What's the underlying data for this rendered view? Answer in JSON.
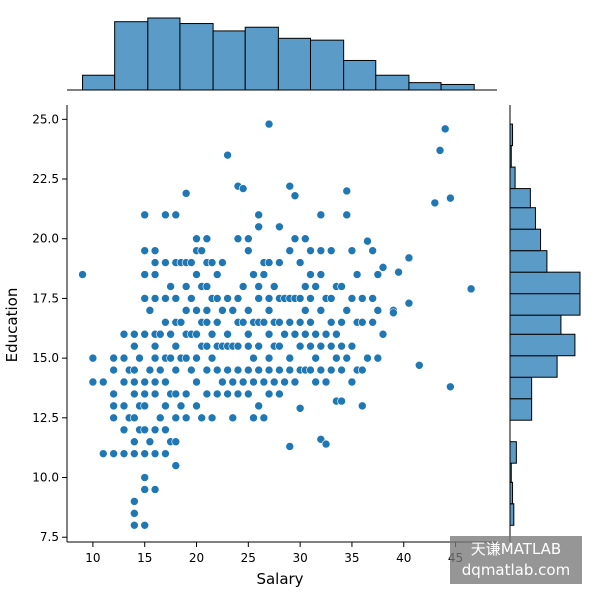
{
  "chart_data": {
    "type": "scatter",
    "title": "",
    "xlabel": "Salary",
    "ylabel": "Education",
    "xlim": [
      7.5,
      49
    ],
    "ylim": [
      7.3,
      25.6
    ],
    "xticks": [
      10,
      15,
      20,
      25,
      30,
      35,
      40,
      45
    ],
    "xtick_labels": [
      "10",
      "15",
      "20",
      "25",
      "30",
      "35",
      "40",
      "45"
    ],
    "yticks": [
      7.5,
      10.0,
      12.5,
      15.0,
      17.5,
      20.0,
      22.5,
      25.0
    ],
    "ytick_labels": [
      "7.5",
      "10.0",
      "12.5",
      "15.0",
      "17.5",
      "20.0",
      "22.5",
      "25.0"
    ],
    "grid": false,
    "point_color": "#1f77b4",
    "bar_color": "#5a9bc8",
    "marginal_x_hist": {
      "bin_edges": [
        9.0,
        12.1,
        15.3,
        18.4,
        21.6,
        24.7,
        27.9,
        31.0,
        34.2,
        37.3,
        40.5,
        43.6,
        46.8
      ],
      "counts": [
        8,
        37,
        39,
        36,
        32,
        34,
        28,
        27,
        16,
        8,
        4,
        3
      ]
    },
    "marginal_y_hist": {
      "bin_edges": [
        8.0,
        8.9,
        9.8,
        10.6,
        11.5,
        12.4,
        13.3,
        14.2,
        15.1,
        16.0,
        16.8,
        17.7,
        18.6,
        19.5,
        20.4,
        21.3,
        22.1,
        23.0,
        23.9,
        24.8
      ],
      "counts": [
        3,
        2,
        1,
        5,
        0,
        17,
        17,
        37,
        51,
        40,
        55,
        55,
        29,
        24,
        20,
        16,
        4,
        1,
        2
      ]
    },
    "points": [
      [
        9,
        18.5
      ],
      [
        10,
        15
      ],
      [
        10,
        14
      ],
      [
        11,
        14
      ],
      [
        11,
        11
      ],
      [
        12,
        11
      ],
      [
        12,
        12.5
      ],
      [
        12,
        13
      ],
      [
        12,
        13.5
      ],
      [
        12,
        14.5
      ],
      [
        12,
        15
      ],
      [
        13,
        11
      ],
      [
        13,
        12
      ],
      [
        13,
        13
      ],
      [
        13,
        14
      ],
      [
        13,
        15
      ],
      [
        13,
        16
      ],
      [
        13.5,
        12.5
      ],
      [
        13.5,
        14.5
      ],
      [
        14,
        8
      ],
      [
        14,
        8.5
      ],
      [
        14,
        9
      ],
      [
        14,
        11
      ],
      [
        14,
        11.5
      ],
      [
        14,
        12.5
      ],
      [
        14,
        13.5
      ],
      [
        14,
        14
      ],
      [
        14,
        14.5
      ],
      [
        14,
        15.5
      ],
      [
        14,
        16
      ],
      [
        14.5,
        12
      ],
      [
        14.5,
        13
      ],
      [
        14.5,
        15
      ],
      [
        15,
        8
      ],
      [
        15,
        9.5
      ],
      [
        15,
        10
      ],
      [
        15,
        11
      ],
      [
        15,
        12
      ],
      [
        15,
        13
      ],
      [
        15,
        13.5
      ],
      [
        15,
        14
      ],
      [
        15,
        16
      ],
      [
        15,
        17.5
      ],
      [
        15,
        18.5
      ],
      [
        15,
        19.5
      ],
      [
        15,
        21
      ],
      [
        15.5,
        11.5
      ],
      [
        15.5,
        14.5
      ],
      [
        15.5,
        17
      ],
      [
        16,
        9.5
      ],
      [
        16,
        11
      ],
      [
        16,
        12
      ],
      [
        16,
        13.5
      ],
      [
        16,
        14
      ],
      [
        16,
        15
      ],
      [
        16,
        15.5
      ],
      [
        16,
        16
      ],
      [
        16,
        17.5
      ],
      [
        16,
        18.5
      ],
      [
        16,
        19
      ],
      [
        16,
        19.5
      ],
      [
        16.5,
        12.5
      ],
      [
        16.5,
        14.5
      ],
      [
        16.5,
        16
      ],
      [
        17,
        11
      ],
      [
        17,
        12
      ],
      [
        17,
        13
      ],
      [
        17,
        14
      ],
      [
        17,
        15
      ],
      [
        17,
        16.5
      ],
      [
        17,
        17.5
      ],
      [
        17,
        19
      ],
      [
        17,
        21
      ],
      [
        17.5,
        11.5
      ],
      [
        17.5,
        13.5
      ],
      [
        17.5,
        15
      ],
      [
        17.5,
        16
      ],
      [
        17.5,
        18
      ],
      [
        18,
        10.5
      ],
      [
        18,
        11.5
      ],
      [
        18,
        12.5
      ],
      [
        18,
        13.5
      ],
      [
        18,
        14.5
      ],
      [
        18,
        15.5
      ],
      [
        18,
        16.5
      ],
      [
        18,
        17.5
      ],
      [
        18,
        19
      ],
      [
        18,
        21
      ],
      [
        18.5,
        13
      ],
      [
        18.5,
        15
      ],
      [
        18.5,
        16.5
      ],
      [
        18.5,
        19
      ],
      [
        19,
        12.5
      ],
      [
        19,
        13.5
      ],
      [
        19,
        15
      ],
      [
        19,
        16
      ],
      [
        19,
        17
      ],
      [
        19,
        18
      ],
      [
        19,
        19
      ],
      [
        19,
        21.9
      ],
      [
        19.5,
        14.5
      ],
      [
        19.5,
        16
      ],
      [
        19.5,
        17.5
      ],
      [
        19.5,
        19
      ],
      [
        20,
        13
      ],
      [
        20,
        14
      ],
      [
        20,
        15
      ],
      [
        20,
        16
      ],
      [
        20,
        17
      ],
      [
        20,
        18.5
      ],
      [
        20,
        19.5
      ],
      [
        20,
        20
      ],
      [
        20.5,
        12.5
      ],
      [
        20.5,
        15.5
      ],
      [
        20.5,
        16.5
      ],
      [
        20.5,
        18
      ],
      [
        20.5,
        19.5
      ],
      [
        21,
        13.5
      ],
      [
        21,
        14.5
      ],
      [
        21,
        15.5
      ],
      [
        21,
        16.5
      ],
      [
        21,
        17
      ],
      [
        21,
        18
      ],
      [
        21,
        19
      ],
      [
        21,
        20
      ],
      [
        21.5,
        12.5
      ],
      [
        21.5,
        15
      ],
      [
        21.5,
        16
      ],
      [
        21.5,
        17.5
      ],
      [
        21.5,
        19
      ],
      [
        22,
        13.5
      ],
      [
        22,
        14.5
      ],
      [
        22,
        15.5
      ],
      [
        22,
        16.5
      ],
      [
        22,
        17.5
      ],
      [
        22,
        18.5
      ],
      [
        22.5,
        14
      ],
      [
        22.5,
        15.5
      ],
      [
        22.5,
        17
      ],
      [
        22.5,
        19
      ],
      [
        23,
        13.5
      ],
      [
        23,
        14.5
      ],
      [
        23,
        15.5
      ],
      [
        23,
        16
      ],
      [
        23,
        17.5
      ],
      [
        23,
        23.5
      ],
      [
        23.5,
        12.5
      ],
      [
        23.5,
        14
      ],
      [
        23.5,
        15.5
      ],
      [
        23.5,
        17
      ],
      [
        24,
        13.5
      ],
      [
        24,
        14.5
      ],
      [
        24,
        15.5
      ],
      [
        24,
        16.5
      ],
      [
        24,
        17.5
      ],
      [
        24,
        20
      ],
      [
        24,
        22.2
      ],
      [
        24.5,
        14
      ],
      [
        24.5,
        16.5
      ],
      [
        24.5,
        18
      ],
      [
        24.5,
        22.1
      ],
      [
        25,
        13.5
      ],
      [
        25,
        14.5
      ],
      [
        25,
        15.5
      ],
      [
        25,
        16
      ],
      [
        25,
        17
      ],
      [
        25,
        19.5
      ],
      [
        25,
        20
      ],
      [
        25.5,
        12.5
      ],
      [
        25.5,
        14
      ],
      [
        25.5,
        15
      ],
      [
        25.5,
        16.5
      ],
      [
        25.5,
        18.5
      ],
      [
        26,
        13
      ],
      [
        26,
        14.5
      ],
      [
        26,
        15.5
      ],
      [
        26,
        16.5
      ],
      [
        26,
        17.5
      ],
      [
        26,
        18
      ],
      [
        26,
        20.5
      ],
      [
        26,
        21
      ],
      [
        26.5,
        12.5
      ],
      [
        26.5,
        14
      ],
      [
        26.5,
        16.5
      ],
      [
        26.5,
        18.5
      ],
      [
        26.5,
        19
      ],
      [
        27,
        13.5
      ],
      [
        27,
        14.5
      ],
      [
        27,
        15
      ],
      [
        27,
        16
      ],
      [
        27,
        17
      ],
      [
        27,
        17.5
      ],
      [
        27,
        19
      ],
      [
        27,
        24.8
      ],
      [
        27.5,
        14
      ],
      [
        27.5,
        15.5
      ],
      [
        27.5,
        16.5
      ],
      [
        27.5,
        18
      ],
      [
        28,
        13.5
      ],
      [
        28,
        14.5
      ],
      [
        28,
        15.5
      ],
      [
        28,
        16.5
      ],
      [
        28,
        17.5
      ],
      [
        28,
        19
      ],
      [
        28,
        20.5
      ],
      [
        28.5,
        14
      ],
      [
        28.5,
        16
      ],
      [
        28.5,
        17.5
      ],
      [
        29,
        11.3
      ],
      [
        29,
        14.5
      ],
      [
        29,
        15
      ],
      [
        29,
        16.5
      ],
      [
        29,
        17.5
      ],
      [
        29,
        19.5
      ],
      [
        29,
        22.2
      ],
      [
        29.5,
        14
      ],
      [
        29.5,
        16
      ],
      [
        29.5,
        17.5
      ],
      [
        29.5,
        20
      ],
      [
        29.5,
        21.8
      ],
      [
        30,
        12.9
      ],
      [
        30,
        14.5
      ],
      [
        30,
        15.5
      ],
      [
        30,
        16.5
      ],
      [
        30,
        17.5
      ],
      [
        30,
        19
      ],
      [
        30.5,
        14.5
      ],
      [
        30.5,
        16
      ],
      [
        30.5,
        17
      ],
      [
        30.5,
        18
      ],
      [
        30.5,
        20
      ],
      [
        31,
        14.5
      ],
      [
        31,
        15.5
      ],
      [
        31,
        16.5
      ],
      [
        31,
        17.5
      ],
      [
        31,
        18.5
      ],
      [
        31,
        19.5
      ],
      [
        31.5,
        14
      ],
      [
        31.5,
        15
      ],
      [
        31.5,
        16
      ],
      [
        31.5,
        18
      ],
      [
        32,
        11.6
      ],
      [
        32,
        14.5
      ],
      [
        32,
        15.5
      ],
      [
        32,
        17
      ],
      [
        32,
        18.5
      ],
      [
        32,
        19.5
      ],
      [
        32,
        21
      ],
      [
        32.5,
        11.4
      ],
      [
        32.5,
        14
      ],
      [
        32.5,
        16
      ],
      [
        32.5,
        17.5
      ],
      [
        33,
        14.5
      ],
      [
        33,
        15.5
      ],
      [
        33,
        16.5
      ],
      [
        33,
        17.5
      ],
      [
        33,
        19.5
      ],
      [
        33.5,
        13.2
      ],
      [
        33.5,
        15
      ],
      [
        33.5,
        16
      ],
      [
        33.5,
        18
      ],
      [
        34,
        13.2
      ],
      [
        34,
        14.5
      ],
      [
        34,
        15.5
      ],
      [
        34,
        16.5
      ],
      [
        34,
        18
      ],
      [
        34.5,
        15
      ],
      [
        34.5,
        17
      ],
      [
        34.5,
        21
      ],
      [
        34.5,
        22
      ],
      [
        35,
        14
      ],
      [
        35,
        15.5
      ],
      [
        35,
        17.5
      ],
      [
        35,
        19.5
      ],
      [
        35.5,
        14.5
      ],
      [
        35.5,
        16.5
      ],
      [
        35.5,
        18.5
      ],
      [
        36,
        13
      ],
      [
        36,
        14.5
      ],
      [
        36,
        16.5
      ],
      [
        36,
        17.5
      ],
      [
        36.5,
        15
      ],
      [
        36.5,
        19.9
      ],
      [
        37,
        16.5
      ],
      [
        37,
        17.5
      ],
      [
        37,
        19.5
      ],
      [
        37.5,
        15
      ],
      [
        37.5,
        17
      ],
      [
        37.5,
        18.5
      ],
      [
        38,
        16
      ],
      [
        38,
        18.8
      ],
      [
        39,
        17
      ],
      [
        39,
        16.9
      ],
      [
        39.5,
        18.6
      ],
      [
        40.5,
        17.3
      ],
      [
        40.5,
        19.2
      ],
      [
        41.5,
        14.7
      ],
      [
        43,
        21.5
      ],
      [
        43.5,
        23.7
      ],
      [
        44,
        24.6
      ],
      [
        44.5,
        21.7
      ],
      [
        44.5,
        13.8
      ],
      [
        46.5,
        17.9
      ]
    ]
  },
  "watermark": {
    "line1": "天谦MATLAB",
    "line2": "dqmatlab.com"
  }
}
